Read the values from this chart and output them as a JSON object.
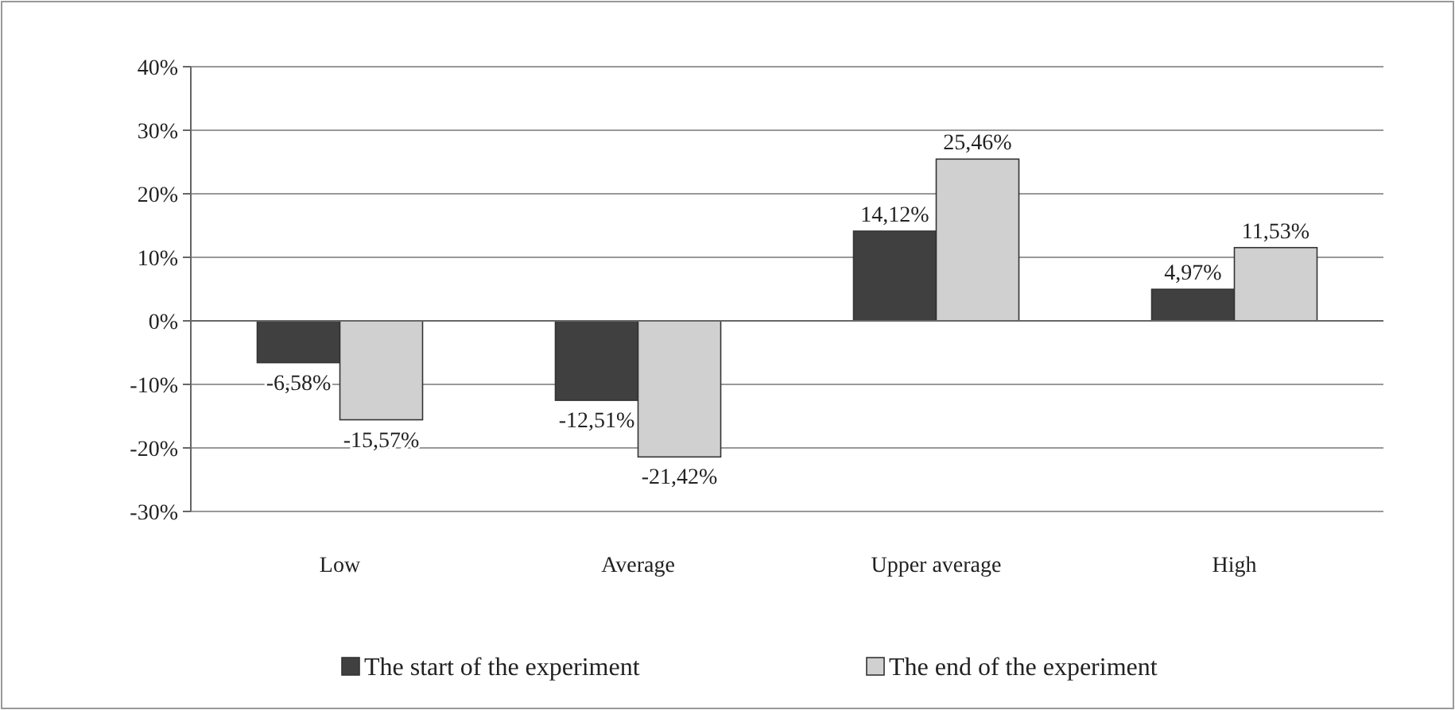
{
  "chart_data": {
    "type": "bar",
    "categories": [
      "Low",
      "Average",
      "Upper average",
      "High"
    ],
    "series": [
      {
        "name": "The start of the experiment",
        "color": "#404040",
        "values": [
          -6.58,
          -12.51,
          14.12,
          4.97
        ],
        "value_labels": [
          "-6,58%",
          "-12,51%",
          "14,12%",
          "4,97%"
        ]
      },
      {
        "name": "The end of the experiment",
        "color": "#d0d0d0",
        "values": [
          -15.57,
          -21.42,
          25.46,
          11.53
        ],
        "value_labels": [
          "-15,57%",
          "-21,42%",
          "25,46%",
          "11,53%"
        ]
      }
    ],
    "ylim": [
      -30,
      40
    ],
    "yticks": [
      {
        "value": 40,
        "label": "40%"
      },
      {
        "value": 30,
        "label": "30%"
      },
      {
        "value": 20,
        "label": "20%"
      },
      {
        "value": 10,
        "label": "10%"
      },
      {
        "value": 0,
        "label": "0%"
      },
      {
        "value": -10,
        "label": "-10%"
      },
      {
        "value": -20,
        "label": "-20%"
      },
      {
        "value": -30,
        "label": "-30%"
      }
    ],
    "grid": "y",
    "legend": "bottom"
  }
}
